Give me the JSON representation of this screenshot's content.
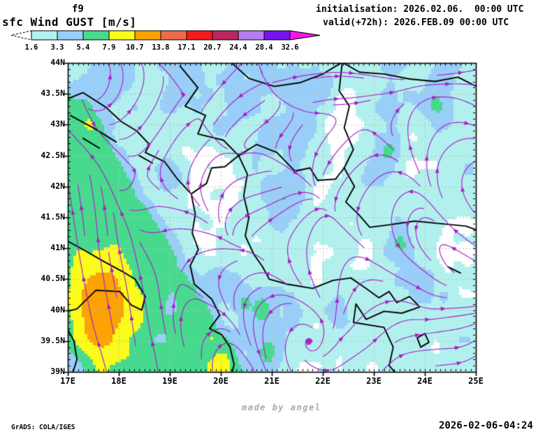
{
  "header": {
    "run_label": "f9",
    "init_line": "initialisation: 2026.02.06.  00:00 UTC",
    "valid_line": "valid(+72h): 2026.FEB.09 00:00 UTC"
  },
  "title": "sfc Wind GUST [m/s]",
  "legend": {
    "tick_labels": [
      "1.6",
      "3.3",
      "5.4",
      "7.9",
      "10.7",
      "13.8",
      "17.1",
      "20.7",
      "24.4",
      "28.4",
      "32.6"
    ],
    "thresholds": [
      1.6,
      3.3,
      5.4,
      7.9,
      10.7,
      13.8,
      17.1,
      20.7,
      24.4,
      28.4,
      32.6
    ],
    "colors": [
      "#b2f0ee",
      "#99cef8",
      "#47da8e",
      "#fbfb1c",
      "#fca204",
      "#ee6a4a",
      "#f41a1a",
      "#bb2560",
      "#b47df0",
      "#7712f0"
    ],
    "below_min_color": "#ffffff",
    "above_max_color": "#f318e8"
  },
  "map": {
    "x_tick_labels": [
      "17E",
      "18E",
      "19E",
      "20E",
      "21E",
      "22E",
      "23E",
      "24E",
      "25E"
    ],
    "y_tick_labels": [
      "44N",
      "43.5N",
      "43N",
      "42.5N",
      "42N",
      "41.5N",
      "41N",
      "40.5N",
      "40N",
      "39.5N",
      "39N"
    ],
    "lon_range": [
      17,
      25
    ],
    "lat_range": [
      39,
      44
    ],
    "streamline_color": "#aa1ec8",
    "grid_color": "#bcbcb0",
    "coast_color": "#000000"
  },
  "footer": {
    "left": "GrADS: COLA/IGES",
    "center": "made by angel",
    "right": "2026-02-06-04:24"
  }
}
